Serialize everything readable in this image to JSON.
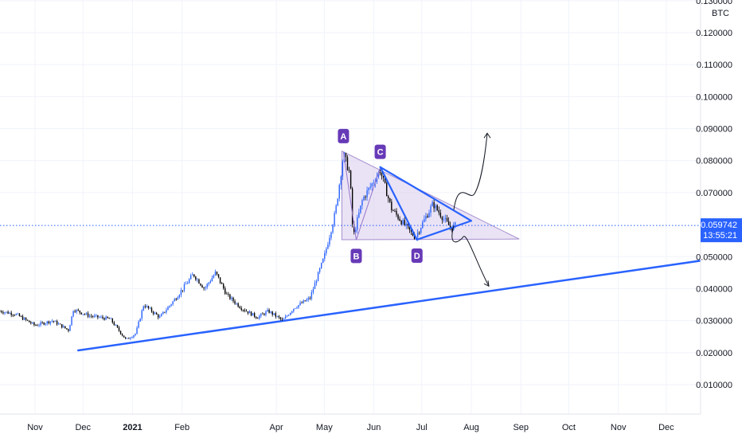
{
  "chart_data": {
    "type": "candlestick",
    "currency_label": "BTC",
    "y_ticks": [
      0.13,
      0.12,
      0.11,
      0.1,
      0.09,
      0.08,
      0.07,
      0.05,
      0.04,
      0.03,
      0.02,
      0.01
    ],
    "y_tick_labels": [
      "0.130000",
      "0.120000",
      "0.110000",
      "0.100000",
      "0.090000",
      "0.080000",
      "0.070000",
      "0.050000",
      "0.040000",
      "0.030000",
      "0.020000",
      "0.010000"
    ],
    "ylim": [
      0.0,
      0.135
    ],
    "x_ticks": [
      {
        "label": "Nov",
        "date": "2020-11-01"
      },
      {
        "label": "Dec",
        "date": "2020-12-01"
      },
      {
        "label": "2021",
        "date": "2021-01-01",
        "year": true
      },
      {
        "label": "Feb",
        "date": "2021-02-01"
      },
      {
        "label": "Apr",
        "date": "2021-04-01"
      },
      {
        "label": "May",
        "date": "2021-05-01"
      },
      {
        "label": "Jun",
        "date": "2021-06-01"
      },
      {
        "label": "Jul",
        "date": "2021-07-01"
      },
      {
        "label": "Aug",
        "date": "2021-08-01"
      },
      {
        "label": "Sep",
        "date": "2021-09-01"
      },
      {
        "label": "Oct",
        "date": "2021-10-01"
      },
      {
        "label": "Nov",
        "date": "2021-11-01"
      },
      {
        "label": "Dec",
        "date": "2021-12-01"
      }
    ],
    "price_path": [
      {
        "date": "2020-10-10",
        "price": 0.033
      },
      {
        "date": "2020-10-20",
        "price": 0.032
      },
      {
        "date": "2020-11-01",
        "price": 0.0285
      },
      {
        "date": "2020-11-12",
        "price": 0.03
      },
      {
        "date": "2020-11-22",
        "price": 0.027
      },
      {
        "date": "2020-11-25",
        "price": 0.0335
      },
      {
        "date": "2020-12-05",
        "price": 0.0315
      },
      {
        "date": "2020-12-18",
        "price": 0.0305
      },
      {
        "date": "2020-12-28",
        "price": 0.024
      },
      {
        "date": "2021-01-03",
        "price": 0.026
      },
      {
        "date": "2021-01-08",
        "price": 0.035
      },
      {
        "date": "2021-01-18",
        "price": 0.031
      },
      {
        "date": "2021-01-28",
        "price": 0.037
      },
      {
        "date": "2021-02-08",
        "price": 0.0445
      },
      {
        "date": "2021-02-15",
        "price": 0.04
      },
      {
        "date": "2021-02-22",
        "price": 0.045
      },
      {
        "date": "2021-03-01",
        "price": 0.038
      },
      {
        "date": "2021-03-10",
        "price": 0.034
      },
      {
        "date": "2021-03-20",
        "price": 0.031
      },
      {
        "date": "2021-03-27",
        "price": 0.033
      },
      {
        "date": "2021-04-05",
        "price": 0.03
      },
      {
        "date": "2021-04-12",
        "price": 0.034
      },
      {
        "date": "2021-04-22",
        "price": 0.037
      },
      {
        "date": "2021-05-01",
        "price": 0.05
      },
      {
        "date": "2021-05-08",
        "price": 0.064
      },
      {
        "date": "2021-05-13",
        "price": 0.082
      },
      {
        "date": "2021-05-17",
        "price": 0.076
      },
      {
        "date": "2021-05-19",
        "price": 0.056
      },
      {
        "date": "2021-05-25",
        "price": 0.068
      },
      {
        "date": "2021-05-30",
        "price": 0.072
      },
      {
        "date": "2021-06-05",
        "price": 0.077
      },
      {
        "date": "2021-06-12",
        "price": 0.065
      },
      {
        "date": "2021-06-20",
        "price": 0.06
      },
      {
        "date": "2021-06-27",
        "price": 0.056
      },
      {
        "date": "2021-07-01",
        "price": 0.06
      },
      {
        "date": "2021-07-08",
        "price": 0.0665
      },
      {
        "date": "2021-07-13",
        "price": 0.063
      },
      {
        "date": "2021-07-19",
        "price": 0.059
      },
      {
        "date": "2021-07-22",
        "price": 0.0597
      }
    ],
    "current_price": {
      "value": 0.059742,
      "label": "0.059742",
      "countdown": "13:55:21"
    },
    "pattern_points": [
      {
        "label": "A",
        "date": "2021-05-13",
        "price": 0.0827
      },
      {
        "label": "B",
        "date": "2021-05-21",
        "price": 0.0552
      },
      {
        "label": "C",
        "date": "2021-06-05",
        "price": 0.0778
      },
      {
        "label": "D",
        "date": "2021-06-28",
        "price": 0.0553
      }
    ],
    "support_trendline": [
      {
        "date": "2020-11-28",
        "price": 0.0207
      },
      {
        "date": "2021-12-22",
        "price": 0.0487
      }
    ],
    "shaded_triangle": [
      {
        "date": "2021-05-12",
        "price": 0.083
      },
      {
        "date": "2021-08-31",
        "price": 0.0555
      },
      {
        "date": "2021-05-12",
        "price": 0.0553
      }
    ],
    "wedge": [
      {
        "date": "2021-06-05",
        "price": 0.078
      },
      {
        "date": "2021-08-01",
        "price": 0.0612
      },
      {
        "date": "2021-06-28",
        "price": 0.0553
      }
    ],
    "colors": {
      "up": "#2962ff",
      "down": "#000000",
      "trendline": "#2962ff",
      "triangle_fill": "#d9ccec",
      "triangle_stroke": "#a58ecf",
      "point_label_bg": "#673ab7",
      "grid": "#f0f3fa",
      "current_line": "#2962ff"
    }
  }
}
